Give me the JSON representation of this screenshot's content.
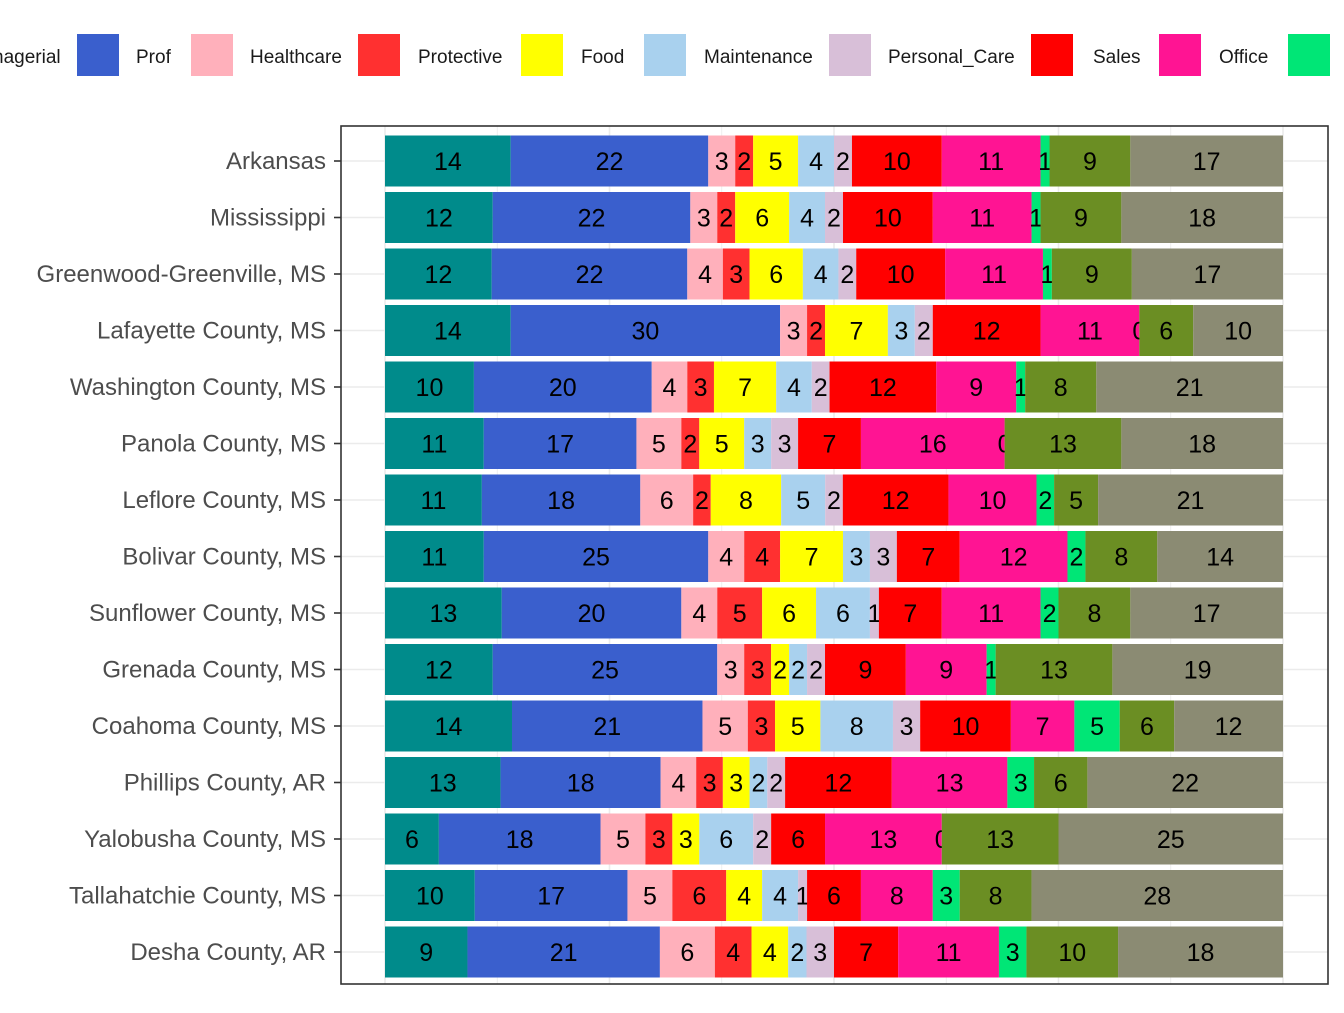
{
  "chart_data": {
    "type": "bar",
    "orientation": "horizontal",
    "stacked": true,
    "normalized_percent": true,
    "legend_position": "top",
    "grid": true,
    "xlim": [
      0,
      100
    ],
    "legend_items": [
      {
        "label": "nagerial",
        "color": "#008B8B"
      },
      {
        "label": "Prof",
        "color": "#3A5FCD"
      },
      {
        "label": "Healthcare",
        "color": "#FFB0BB"
      },
      {
        "label": "Protective",
        "color": "#FF3030"
      },
      {
        "label": "Food",
        "color": "#FFFF00"
      },
      {
        "label": "Maintenance",
        "color": "#A9D1EE"
      },
      {
        "label": "Personal_Care",
        "color": "#D8BFD8"
      },
      {
        "label": "Sales",
        "color": "#FF0000"
      },
      {
        "label": "Office",
        "color": "#FF1493"
      },
      {
        "label": "",
        "color": "#00E676"
      }
    ],
    "series": [
      {
        "color": "#008B8B"
      },
      {
        "name": "Prof",
        "color": "#3A5FCD"
      },
      {
        "name": "Healthcare",
        "color": "#FFB0BB"
      },
      {
        "name": "Protective",
        "color": "#FF3030"
      },
      {
        "name": "Food",
        "color": "#FFFF00"
      },
      {
        "name": "Maintenance",
        "color": "#A9D1EE"
      },
      {
        "name": "Personal_Care",
        "color": "#D8BFD8"
      },
      {
        "name": "Sales",
        "color": "#FF0000"
      },
      {
        "name": "Office",
        "color": "#FF1493"
      },
      {
        "color": "#00E676"
      },
      {
        "color": "#6B8E23"
      },
      {
        "color": "#8B8B73"
      }
    ],
    "rows": [
      {
        "category": "Arkansas",
        "values": [
          14,
          22,
          3,
          2,
          5,
          4,
          2,
          10,
          11,
          1,
          9,
          17
        ]
      },
      {
        "category": "Mississippi",
        "values": [
          12,
          22,
          3,
          2,
          6,
          4,
          2,
          10,
          11,
          1,
          9,
          18
        ]
      },
      {
        "category": "Greenwood-Greenville, MS",
        "values": [
          12,
          22,
          4,
          3,
          6,
          4,
          2,
          10,
          11,
          1,
          9,
          17
        ]
      },
      {
        "category": "Lafayette County, MS",
        "values": [
          14,
          30,
          3,
          2,
          7,
          3,
          2,
          12,
          11,
          0,
          6,
          10
        ]
      },
      {
        "category": "Washington County, MS",
        "values": [
          10,
          20,
          4,
          3,
          7,
          4,
          2,
          12,
          9,
          1,
          8,
          21
        ]
      },
      {
        "category": "Panola County, MS",
        "values": [
          11,
          17,
          5,
          2,
          5,
          3,
          3,
          7,
          16,
          0,
          13,
          18
        ]
      },
      {
        "category": "Leflore County, MS",
        "values": [
          11,
          18,
          6,
          2,
          8,
          5,
          2,
          12,
          10,
          2,
          5,
          21
        ]
      },
      {
        "category": "Bolivar County, MS",
        "values": [
          11,
          25,
          4,
          4,
          7,
          3,
          3,
          7,
          12,
          2,
          8,
          14
        ]
      },
      {
        "category": "Sunflower County, MS",
        "values": [
          13,
          20,
          4,
          5,
          6,
          6,
          1,
          7,
          11,
          2,
          8,
          17
        ]
      },
      {
        "category": "Grenada County, MS",
        "values": [
          12,
          25,
          3,
          3,
          2,
          2,
          2,
          9,
          9,
          1,
          13,
          19
        ]
      },
      {
        "category": "Coahoma County, MS",
        "values": [
          14,
          21,
          5,
          3,
          5,
          8,
          3,
          10,
          7,
          5,
          6,
          12
        ]
      },
      {
        "category": "Phillips County, AR",
        "values": [
          13,
          18,
          4,
          3,
          3,
          2,
          2,
          12,
          13,
          3,
          6,
          22
        ]
      },
      {
        "category": "Yalobusha County, MS",
        "values": [
          6,
          18,
          5,
          3,
          3,
          6,
          2,
          6,
          13,
          0,
          13,
          25
        ]
      },
      {
        "category": "Tallahatchie County, MS",
        "values": [
          10,
          17,
          5,
          6,
          4,
          4,
          1,
          6,
          8,
          3,
          8,
          28
        ]
      },
      {
        "category": "Desha County, AR",
        "values": [
          9,
          21,
          6,
          4,
          4,
          2,
          3,
          7,
          11,
          3,
          10,
          18
        ]
      }
    ]
  }
}
